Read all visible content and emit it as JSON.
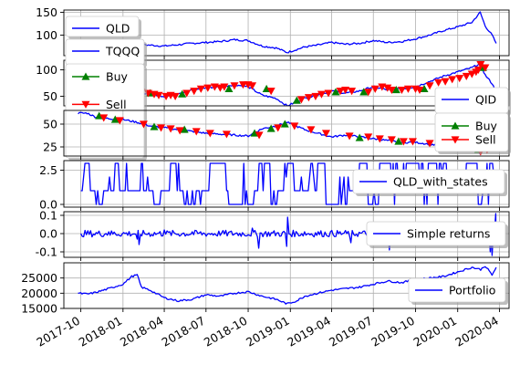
{
  "chart_data": [
    {
      "type": "line",
      "yticks": [
        100,
        150
      ],
      "ylim": [
        55,
        155
      ],
      "grid": true,
      "legend_placement": "upper-left",
      "series": [
        {
          "name": "QLD",
          "color": "#0000ff",
          "marker": "none",
          "x": [
            "2017-10-01",
            "2017-11-01",
            "2017-12-01",
            "2018-01-01",
            "2018-02-01",
            "2018-03-01",
            "2018-04-01",
            "2018-05-01",
            "2018-06-01",
            "2018-07-01",
            "2018-08-01",
            "2018-09-01",
            "2018-10-01",
            "2018-11-01",
            "2018-12-01",
            "2018-12-25",
            "2019-02-01",
            "2019-03-01",
            "2019-04-01",
            "2019-05-01",
            "2019-06-01",
            "2019-07-01",
            "2019-08-01",
            "2019-09-01",
            "2019-10-01",
            "2019-11-01",
            "2019-12-01",
            "2020-01-01",
            "2020-02-01",
            "2020-02-19",
            "2020-03-01",
            "2020-03-16",
            "2020-03-25"
          ],
          "y": [
            68,
            70,
            72,
            74,
            80,
            78,
            76,
            79,
            82,
            84,
            86,
            90,
            88,
            76,
            72,
            62,
            74,
            78,
            84,
            80,
            82,
            88,
            84,
            86,
            92,
            100,
            110,
            118,
            128,
            150,
            120,
            100,
            82
          ]
        }
      ]
    },
    {
      "type": "line",
      "yticks": [
        50,
        100
      ],
      "ylim": [
        32,
        118
      ],
      "grid": true,
      "legend_placement": "upper-left",
      "series": [
        {
          "name": "TQQQ",
          "color": "#0000ff",
          "marker": "none",
          "x": [
            "2017-09-25",
            "2017-11-01",
            "2017-12-01",
            "2018-01-01",
            "2018-02-01",
            "2018-03-01",
            "2018-04-01",
            "2018-05-01",
            "2018-06-01",
            "2018-07-01",
            "2018-08-01",
            "2018-09-01",
            "2018-10-01",
            "2018-11-01",
            "2018-12-01",
            "2018-12-25",
            "2019-02-01",
            "2019-03-01",
            "2019-04-01",
            "2019-05-01",
            "2019-06-01",
            "2019-07-01",
            "2019-08-01",
            "2019-09-01",
            "2019-10-01",
            "2019-11-01",
            "2019-12-01",
            "2020-01-01",
            "2020-02-01",
            "2020-02-19",
            "2020-03-01",
            "2020-03-16",
            "2020-03-25"
          ],
          "y": [
            38,
            40,
            44,
            50,
            58,
            54,
            50,
            56,
            62,
            66,
            68,
            72,
            68,
            52,
            46,
            32,
            46,
            52,
            60,
            56,
            60,
            68,
            62,
            64,
            68,
            78,
            88,
            96,
            104,
            112,
            90,
            74,
            58
          ]
        },
        {
          "name": "Buy",
          "color": "#008000",
          "marker": "triangle-up",
          "x": [
            "2017-10-05",
            "2018-03-01",
            "2018-05-10",
            "2018-08-20",
            "2018-11-10",
            "2019-01-15",
            "2019-04-10",
            "2019-06-10",
            "2019-08-20",
            "2019-10-20",
            "2020-02-25"
          ],
          "y": [
            39,
            56,
            54,
            64,
            64,
            42,
            58,
            58,
            62,
            64,
            104
          ]
        },
        {
          "name": "Sell",
          "color": "#ff0000",
          "marker": "triangle-down",
          "x": [
            "2017-10-10",
            "2017-10-25",
            "2018-02-10",
            "2018-02-25",
            "2018-03-10",
            "2018-03-20",
            "2018-04-05",
            "2018-04-15",
            "2018-04-25",
            "2018-05-20",
            "2018-06-05",
            "2018-06-20",
            "2018-07-05",
            "2018-07-20",
            "2018-08-01",
            "2018-08-10",
            "2018-09-01",
            "2018-09-20",
            "2018-10-01",
            "2018-10-10",
            "2018-11-20",
            "2019-01-25",
            "2019-02-10",
            "2019-02-25",
            "2019-03-10",
            "2019-03-25",
            "2019-04-20",
            "2019-05-01",
            "2019-05-15",
            "2019-06-20",
            "2019-07-05",
            "2019-07-20",
            "2019-08-01",
            "2019-08-10",
            "2019-09-01",
            "2019-09-15",
            "2019-10-01",
            "2019-10-10",
            "2019-11-01",
            "2019-11-20",
            "2019-12-05",
            "2019-12-20",
            "2020-01-05",
            "2020-01-20",
            "2020-02-01",
            "2020-02-10",
            "2020-02-15",
            "2020-02-20",
            "2020-03-01"
          ],
          "y": [
            40,
            40,
            58,
            56,
            54,
            52,
            50,
            52,
            50,
            56,
            60,
            64,
            66,
            68,
            66,
            68,
            70,
            72,
            72,
            70,
            60,
            44,
            48,
            50,
            54,
            56,
            60,
            62,
            60,
            58,
            64,
            68,
            66,
            62,
            62,
            64,
            64,
            62,
            70,
            76,
            78,
            82,
            84,
            88,
            92,
            96,
            100,
            110,
            104
          ]
        }
      ]
    },
    {
      "type": "line",
      "yticks": [
        25,
        50
      ],
      "ylim": [
        15,
        65
      ],
      "grid": true,
      "legend_placement": "lower-right",
      "series": [
        {
          "name": "QID",
          "color": "#0000ff",
          "marker": "none",
          "x": [
            "2017-09-25",
            "2017-10-15",
            "2017-11-01",
            "2017-12-01",
            "2018-01-01",
            "2018-02-01",
            "2018-03-01",
            "2018-04-01",
            "2018-05-01",
            "2018-06-01",
            "2018-07-01",
            "2018-08-01",
            "2018-09-01",
            "2018-10-01",
            "2018-11-01",
            "2018-12-01",
            "2018-12-25",
            "2019-02-01",
            "2019-03-01",
            "2019-04-01",
            "2019-05-01",
            "2019-06-01",
            "2019-07-01",
            "2019-08-01",
            "2019-09-01",
            "2019-10-01",
            "2019-11-01",
            "2019-12-01",
            "2020-01-01",
            "2020-02-01",
            "2020-02-19",
            "2020-03-01",
            "2020-03-16",
            "2020-03-25"
          ],
          "y": [
            62,
            62,
            58,
            56,
            55,
            52,
            48,
            46,
            44,
            42,
            40,
            39,
            38,
            37,
            45,
            48,
            52,
            44,
            40,
            36,
            38,
            36,
            34,
            32,
            30,
            30,
            28,
            26,
            24,
            22,
            18,
            22,
            26,
            30
          ]
        },
        {
          "name": "Buy",
          "color": "#008000",
          "marker": "triangle-up",
          "x": [
            "2017-11-10",
            "2017-12-15",
            "2018-03-10",
            "2018-05-15",
            "2018-10-15",
            "2018-11-20",
            "2018-12-20",
            "2019-06-01",
            "2019-08-25",
            "2020-02-15"
          ],
          "y": [
            59,
            55,
            47,
            44,
            40,
            45,
            50,
            35,
            31,
            22
          ]
        },
        {
          "name": "Sell",
          "color": "#ff0000",
          "marker": "triangle-down",
          "x": [
            "2017-11-20",
            "2017-12-25",
            "2018-02-15",
            "2018-03-25",
            "2018-04-15",
            "2018-05-05",
            "2018-06-10",
            "2018-07-10",
            "2018-08-15",
            "2018-10-25",
            "2018-12-05",
            "2019-01-10",
            "2019-02-15",
            "2019-03-20",
            "2019-05-10",
            "2019-06-20",
            "2019-07-15",
            "2019-08-10",
            "2019-09-05",
            "2019-09-25",
            "2019-11-01",
            "2019-12-10",
            "2020-01-20",
            "2020-02-20",
            "2020-03-05"
          ],
          "y": [
            57,
            54,
            50,
            46,
            45,
            43,
            42,
            40,
            39,
            38,
            46,
            48,
            44,
            40,
            37,
            36,
            34,
            33,
            31,
            31,
            29,
            27,
            24,
            20,
            22
          ]
        }
      ]
    },
    {
      "type": "line",
      "yticks": [
        0.0,
        2.5
      ],
      "ylim": [
        -0.2,
        3.2
      ],
      "grid": true,
      "legend_placement": "right",
      "series": [
        {
          "name": "QLD_with_states",
          "color": "#0000ff",
          "marker": "none",
          "kind": "step-states",
          "x": [
            "2017-10-01",
            "2017-10-10",
            "2017-10-25",
            "2017-11-10",
            "2017-11-20",
            "2017-12-15",
            "2017-12-25",
            "2018-02-10",
            "2018-02-15",
            "2018-03-10",
            "2018-03-25",
            "2018-04-15",
            "2018-05-05",
            "2018-05-15",
            "2018-06-10",
            "2018-07-10",
            "2018-08-15",
            "2018-08-20",
            "2018-10-15",
            "2018-10-25",
            "2018-11-20",
            "2018-12-05",
            "2018-12-20",
            "2019-01-10",
            "2019-02-15",
            "2019-03-20",
            "2019-05-10",
            "2019-06-01",
            "2019-06-20",
            "2019-07-15",
            "2019-08-25",
            "2019-09-05",
            "2019-10-20",
            "2019-11-01",
            "2019-12-10",
            "2020-01-20",
            "2020-02-15",
            "2020-02-25",
            "2020-03-05",
            "2020-03-20"
          ],
          "y": [
            1,
            3,
            1,
            0,
            1,
            3,
            1,
            3,
            1,
            0,
            1,
            3,
            1,
            0,
            1,
            3,
            1,
            0,
            1,
            3,
            0,
            1,
            3,
            1,
            3,
            0,
            1,
            3,
            0,
            3,
            1,
            3,
            0,
            3,
            1,
            3,
            0,
            1,
            3,
            2
          ]
        }
      ]
    },
    {
      "type": "line",
      "yticks": [
        -0.1,
        0.0,
        0.1
      ],
      "ylim": [
        -0.13,
        0.12
      ],
      "grid": true,
      "legend_placement": "right",
      "series": [
        {
          "name": "Simple returns",
          "color": "#0000ff",
          "marker": "none",
          "kind": "noise",
          "x": [
            "2017-10-01",
            "2017-12-01",
            "2018-02-01",
            "2018-02-05",
            "2018-04-01",
            "2018-06-01",
            "2018-08-01",
            "2018-10-10",
            "2018-10-24",
            "2018-12-24",
            "2018-12-26",
            "2019-02-01",
            "2019-05-13",
            "2019-08-05",
            "2019-10-01",
            "2020-01-01",
            "2020-02-27",
            "2020-03-12",
            "2020-03-16",
            "2020-03-24",
            "2020-03-25"
          ],
          "y": [
            0.0,
            0.01,
            -0.03,
            -0.06,
            0.02,
            0.01,
            -0.01,
            0.03,
            -0.08,
            -0.07,
            0.09,
            0.01,
            -0.05,
            -0.09,
            0.02,
            0.0,
            -0.06,
            -0.1,
            -0.12,
            0.11,
            0.05
          ]
        }
      ]
    },
    {
      "type": "line",
      "yticks": [
        15000,
        20000,
        25000
      ],
      "ylim": [
        15000,
        30000
      ],
      "grid": true,
      "legend_placement": "right",
      "series": [
        {
          "name": "Portfolio",
          "color": "#0000ff",
          "marker": "none",
          "x": [
            "2017-09-25",
            "2017-10-15",
            "2017-11-01",
            "2017-12-01",
            "2018-01-01",
            "2018-01-20",
            "2018-02-01",
            "2018-02-10",
            "2018-03-01",
            "2018-04-01",
            "2018-05-01",
            "2018-06-01",
            "2018-07-01",
            "2018-08-01",
            "2018-09-01",
            "2018-10-01",
            "2018-11-01",
            "2018-12-01",
            "2018-12-25",
            "2019-01-15",
            "2019-02-01",
            "2019-03-01",
            "2019-04-01",
            "2019-05-01",
            "2019-06-01",
            "2019-07-01",
            "2019-08-01",
            "2019-09-01",
            "2019-10-01",
            "2019-11-01",
            "2019-12-01",
            "2020-01-01",
            "2020-02-01",
            "2020-02-20",
            "2020-03-01",
            "2020-03-16",
            "2020-03-25"
          ],
          "y": [
            20000,
            19700,
            20200,
            21500,
            23000,
            25500,
            26000,
            22000,
            21000,
            18500,
            17500,
            18000,
            19500,
            19000,
            20000,
            20500,
            19000,
            18000,
            16500,
            17500,
            19000,
            20000,
            21000,
            21500,
            22000,
            23000,
            24000,
            23500,
            24500,
            25000,
            25500,
            27000,
            28500,
            27800,
            29000,
            26000,
            28500
          ]
        }
      ]
    }
  ],
  "x_axis": {
    "tick_labels": [
      "2017-10",
      "2018-01",
      "2018-04",
      "2018-07",
      "2018-10",
      "2019-01",
      "2019-04",
      "2019-07",
      "2019-10",
      "2020-01",
      "2020-04"
    ],
    "range": [
      "2017-08-25",
      "2020-04-22"
    ],
    "label_rotation": "30deg"
  }
}
